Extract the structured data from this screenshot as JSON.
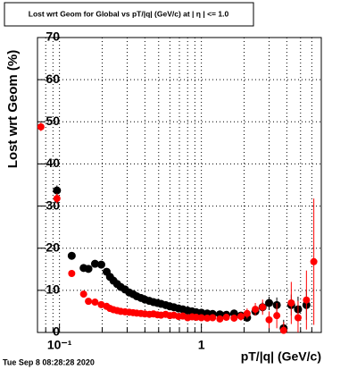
{
  "chart_data": {
    "type": "scatter",
    "title": "Lost wrt Geom for Global vs pT/|q| (GeV/c) at | η | <= 1.0",
    "x_label": "pT/|q| (GeV/c)",
    "y_label": "Lost wrt Geom (%)",
    "timestamp": "Tue Sep  8 08:28:28 2020",
    "log_x": true,
    "grid": true,
    "xlim": [
      0.07,
      7
    ],
    "ylim": [
      0,
      70
    ],
    "xticks": [
      {
        "value": 0.1,
        "label": "10⁻¹"
      },
      1
    ],
    "xminor": [
      0.08,
      0.09,
      0.2,
      0.3,
      0.4,
      0.5,
      0.6,
      0.7,
      0.8,
      0.9,
      2,
      3,
      4,
      5,
      6,
      7
    ],
    "yticks": [
      0,
      10,
      20,
      30,
      40,
      50,
      60,
      70
    ],
    "x": [
      0.074,
      0.096,
      0.122,
      0.148,
      0.16,
      0.178,
      0.197,
      0.215,
      0.227,
      0.24,
      0.255,
      0.27,
      0.29,
      0.31,
      0.33,
      0.35,
      0.375,
      0.4,
      0.43,
      0.46,
      0.49,
      0.52,
      0.56,
      0.6,
      0.64,
      0.69,
      0.74,
      0.8,
      0.86,
      0.92,
      1.0,
      1.1,
      1.2,
      1.35,
      1.5,
      1.7,
      1.9,
      2.1,
      2.4,
      2.7,
      3.0,
      3.4,
      3.8,
      4.3,
      4.8,
      5.5,
      6.2
    ],
    "series": [
      {
        "color": "#000000",
        "values": [
          null,
          33.7,
          18.2,
          15.3,
          15.1,
          16.3,
          16.1,
          14.4,
          13.2,
          12.3,
          11.5,
          10.8,
          10.2,
          9.5,
          9.1,
          8.6,
          8.2,
          7.8,
          7.5,
          7.2,
          7.0,
          6.8,
          6.5,
          6.2,
          6.0,
          5.7,
          5.5,
          5.2,
          5.0,
          4.8,
          4.7,
          4.5,
          4.4,
          4.3,
          4.2,
          4.5,
          4.0,
          3.5,
          5.0,
          6.0,
          7.0,
          6.5,
          1.0,
          6.5,
          5.5,
          6.5,
          null
        ],
        "errors": [
          null,
          1.2,
          0.8,
          0.7,
          0.6,
          0.6,
          0.6,
          0.5,
          0.5,
          0.5,
          0.5,
          0.5,
          0.5,
          0.5,
          0.5,
          0.5,
          0.5,
          0.5,
          0.5,
          0.5,
          0.5,
          0.5,
          0.5,
          0.5,
          0.5,
          0.5,
          0.5,
          0.5,
          0.5,
          0.5,
          0.5,
          0.5,
          0.5,
          0.5,
          0.6,
          0.6,
          0.7,
          0.8,
          1.0,
          1.2,
          1.5,
          1.8,
          2.0,
          2.5,
          3.0,
          3.5,
          null
        ]
      },
      {
        "color": "#ff0000",
        "values": [
          48.8,
          31.8,
          14.0,
          9.1,
          7.4,
          7.2,
          6.6,
          6.2,
          5.7,
          5.4,
          5.2,
          5.0,
          4.9,
          4.8,
          4.7,
          4.6,
          4.5,
          4.4,
          4.3,
          4.4,
          4.2,
          4.1,
          4.3,
          4.0,
          4.1,
          3.8,
          3.9,
          3.5,
          3.7,
          3.6,
          3.5,
          3.4,
          3.5,
          3.2,
          3.6,
          3.4,
          3.8,
          4.5,
          5.5,
          6.0,
          3.0,
          4.0,
          0.5,
          7.0,
          3.5,
          7.7,
          16.8
        ],
        "errors": [
          1.0,
          1.2,
          0.7,
          0.5,
          0.4,
          0.4,
          0.4,
          0.4,
          0.4,
          0.4,
          0.4,
          0.4,
          0.4,
          0.4,
          0.4,
          0.4,
          0.4,
          0.4,
          0.4,
          0.4,
          0.4,
          0.4,
          0.4,
          0.4,
          0.4,
          0.4,
          0.4,
          0.4,
          0.4,
          0.4,
          0.5,
          0.5,
          0.5,
          0.6,
          0.7,
          0.8,
          1.0,
          1.2,
          1.5,
          1.8,
          2.0,
          3.0,
          2.0,
          5.0,
          4.0,
          7.0,
          15.0
        ]
      }
    ]
  }
}
